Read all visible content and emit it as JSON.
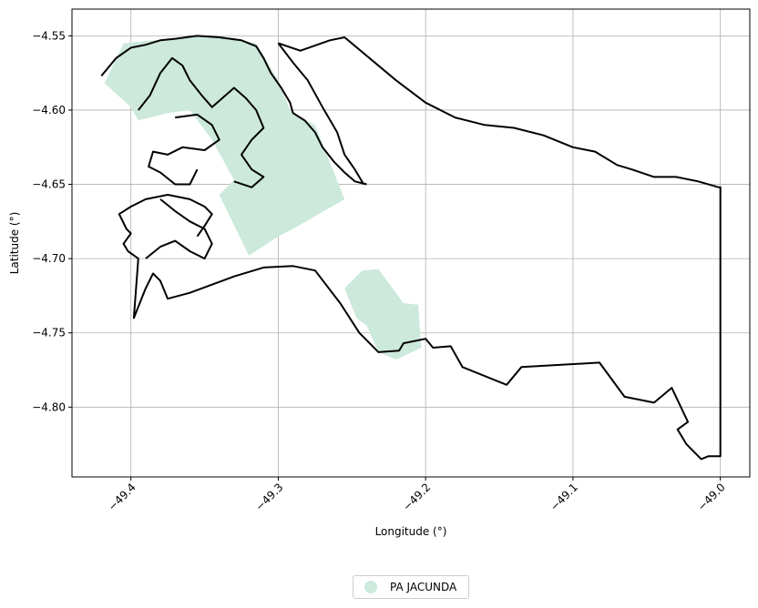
{
  "chart_data": {
    "type": "map",
    "xlabel": "Longitude (°)",
    "ylabel": "Latitude (°)",
    "xlim": [
      -49.44,
      -48.98
    ],
    "ylim": [
      -4.847,
      -4.532
    ],
    "x_ticks": [
      -49.4,
      -49.3,
      -49.2,
      -49.1,
      -49.0
    ],
    "x_tick_labels": [
      "−49.4",
      "−49.3",
      "−49.2",
      "−49.1",
      "−49.0"
    ],
    "y_ticks": [
      -4.55,
      -4.6,
      -4.65,
      -4.7,
      -4.75,
      -4.8
    ],
    "y_tick_labels": [
      "−4.55",
      "−4.60",
      "−4.65",
      "−4.70",
      "−4.75",
      "−4.80"
    ],
    "grid": true,
    "legend_position": "bottom-center",
    "legend": [
      {
        "label": "PA JACUNDA",
        "color": "#cce9dc"
      }
    ],
    "area_color": "#cce9dc",
    "boundary_color": "#000000",
    "settlement_area": [
      [
        [
          -49.418,
          -4.582
        ],
        [
          -49.405,
          -4.555
        ],
        [
          -49.385,
          -4.553
        ],
        [
          -49.36,
          -4.551
        ],
        [
          -49.34,
          -4.55
        ],
        [
          -49.315,
          -4.555
        ],
        [
          -49.3,
          -4.58
        ],
        [
          -49.292,
          -4.6
        ],
        [
          -49.285,
          -4.605
        ],
        [
          -49.275,
          -4.61
        ],
        [
          -49.255,
          -4.66
        ],
        [
          -49.29,
          -4.68
        ],
        [
          -49.3,
          -4.685
        ],
        [
          -49.32,
          -4.698
        ],
        [
          -49.34,
          -4.657
        ],
        [
          -49.33,
          -4.647
        ],
        [
          -49.345,
          -4.62
        ],
        [
          -49.36,
          -4.6
        ],
        [
          -49.375,
          -4.602
        ],
        [
          -49.395,
          -4.607
        ],
        [
          -49.4,
          -4.598
        ],
        [
          -49.42,
          -4.58
        ]
      ],
      [
        [
          -49.243,
          -4.708
        ],
        [
          -49.232,
          -4.707
        ],
        [
          -49.224,
          -4.718
        ],
        [
          -49.215,
          -4.73
        ],
        [
          -49.205,
          -4.731
        ],
        [
          -49.203,
          -4.76
        ],
        [
          -49.22,
          -4.768
        ],
        [
          -49.232,
          -4.763
        ],
        [
          -49.24,
          -4.745
        ],
        [
          -49.247,
          -4.74
        ],
        [
          -49.255,
          -4.72
        ]
      ]
    ],
    "boundary": [
      [
        [
          -49.3,
          -4.555
        ],
        [
          -49.285,
          -4.56
        ],
        [
          -49.265,
          -4.553
        ],
        [
          -49.255,
          -4.551
        ],
        [
          -49.22,
          -4.58
        ],
        [
          -49.2,
          -4.595
        ],
        [
          -49.18,
          -4.605
        ],
        [
          -49.16,
          -4.61
        ],
        [
          -49.14,
          -4.612
        ],
        [
          -49.12,
          -4.617
        ],
        [
          -49.1,
          -4.625
        ],
        [
          -49.085,
          -4.628
        ],
        [
          -49.07,
          -4.637
        ],
        [
          -49.06,
          -4.64
        ],
        [
          -49.045,
          -4.645
        ],
        [
          -49.03,
          -4.645
        ],
        [
          -49.015,
          -4.648
        ],
        [
          -49.001,
          -4.652
        ],
        [
          -49.0,
          -4.652
        ],
        [
          -49.0,
          -4.833
        ],
        [
          -49.008,
          -4.833
        ],
        [
          -49.013,
          -4.835
        ],
        [
          -49.023,
          -4.825
        ],
        [
          -49.029,
          -4.815
        ],
        [
          -49.022,
          -4.81
        ],
        [
          -49.033,
          -4.787
        ],
        [
          -49.045,
          -4.797
        ],
        [
          -49.065,
          -4.793
        ],
        [
          -49.082,
          -4.77
        ],
        [
          -49.135,
          -4.773
        ],
        [
          -49.145,
          -4.785
        ],
        [
          -49.175,
          -4.773
        ],
        [
          -49.183,
          -4.759
        ],
        [
          -49.195,
          -4.76
        ],
        [
          -49.2,
          -4.754
        ],
        [
          -49.215,
          -4.757
        ],
        [
          -49.218,
          -4.762
        ],
        [
          -49.232,
          -4.763
        ],
        [
          -49.245,
          -4.75
        ],
        [
          -49.258,
          -4.73
        ],
        [
          -49.275,
          -4.708
        ],
        [
          -49.29,
          -4.705
        ],
        [
          -49.31,
          -4.706
        ],
        [
          -49.33,
          -4.712
        ],
        [
          -49.36,
          -4.723
        ],
        [
          -49.375,
          -4.727
        ],
        [
          -49.38,
          -4.715
        ],
        [
          -49.385,
          -4.71
        ],
        [
          -49.39,
          -4.72
        ],
        [
          -49.398,
          -4.74
        ],
        [
          -49.395,
          -4.7
        ],
        [
          -49.402,
          -4.695
        ],
        [
          -49.405,
          -4.69
        ],
        [
          -49.4,
          -4.683
        ],
        [
          -49.403,
          -4.68
        ],
        [
          -49.408,
          -4.67
        ],
        [
          -49.4,
          -4.665
        ],
        [
          -49.39,
          -4.66
        ],
        [
          -49.375,
          -4.657
        ],
        [
          -49.36,
          -4.66
        ],
        [
          -49.35,
          -4.665
        ],
        [
          -49.345,
          -4.67
        ],
        [
          -49.35,
          -4.678
        ],
        [
          -49.355,
          -4.685
        ]
      ],
      [
        [
          -49.37,
          -4.605
        ],
        [
          -49.355,
          -4.603
        ],
        [
          -49.345,
          -4.61
        ],
        [
          -49.34,
          -4.62
        ],
        [
          -49.35,
          -4.627
        ],
        [
          -49.365,
          -4.625
        ],
        [
          -49.375,
          -4.63
        ],
        [
          -49.385,
          -4.628
        ],
        [
          -49.388,
          -4.638
        ],
        [
          -49.38,
          -4.642
        ],
        [
          -49.37,
          -4.65
        ],
        [
          -49.36,
          -4.65
        ],
        [
          -49.355,
          -4.64
        ]
      ],
      [
        [
          -49.42,
          -4.577
        ],
        [
          -49.41,
          -4.565
        ],
        [
          -49.4,
          -4.558
        ],
        [
          -49.39,
          -4.556
        ],
        [
          -49.38,
          -4.553
        ],
        [
          -49.37,
          -4.552
        ],
        [
          -49.355,
          -4.55
        ],
        [
          -49.34,
          -4.551
        ],
        [
          -49.325,
          -4.553
        ],
        [
          -49.315,
          -4.557
        ],
        [
          -49.31,
          -4.565
        ],
        [
          -49.305,
          -4.575
        ],
        [
          -49.298,
          -4.585
        ],
        [
          -49.292,
          -4.595
        ],
        [
          -49.29,
          -4.602
        ],
        [
          -49.282,
          -4.607
        ],
        [
          -49.275,
          -4.615
        ],
        [
          -49.27,
          -4.625
        ],
        [
          -49.262,
          -4.635
        ],
        [
          -49.255,
          -4.642
        ],
        [
          -49.248,
          -4.648
        ],
        [
          -49.24,
          -4.65
        ]
      ],
      [
        [
          -49.3,
          -4.555
        ],
        [
          -49.29,
          -4.568
        ],
        [
          -49.28,
          -4.58
        ],
        [
          -49.27,
          -4.598
        ],
        [
          -49.26,
          -4.615
        ],
        [
          -49.255,
          -4.63
        ],
        [
          -49.248,
          -4.64
        ],
        [
          -49.242,
          -4.65
        ]
      ],
      [
        [
          -49.395,
          -4.6
        ],
        [
          -49.387,
          -4.59
        ],
        [
          -49.38,
          -4.575
        ],
        [
          -49.372,
          -4.565
        ],
        [
          -49.365,
          -4.57
        ],
        [
          -49.36,
          -4.58
        ],
        [
          -49.352,
          -4.59
        ],
        [
          -49.345,
          -4.598
        ],
        [
          -49.338,
          -4.592
        ],
        [
          -49.33,
          -4.585
        ],
        [
          -49.322,
          -4.592
        ],
        [
          -49.315,
          -4.6
        ],
        [
          -49.31,
          -4.612
        ],
        [
          -49.318,
          -4.62
        ],
        [
          -49.325,
          -4.63
        ],
        [
          -49.318,
          -4.64
        ],
        [
          -49.31,
          -4.645
        ],
        [
          -49.318,
          -4.652
        ],
        [
          -49.33,
          -4.648
        ]
      ],
      [
        [
          -49.38,
          -4.66
        ],
        [
          -49.37,
          -4.668
        ],
        [
          -49.36,
          -4.675
        ],
        [
          -49.35,
          -4.68
        ],
        [
          -49.345,
          -4.69
        ],
        [
          -49.35,
          -4.7
        ],
        [
          -49.36,
          -4.695
        ],
        [
          -49.37,
          -4.688
        ],
        [
          -49.38,
          -4.692
        ],
        [
          -49.39,
          -4.7
        ]
      ]
    ]
  }
}
